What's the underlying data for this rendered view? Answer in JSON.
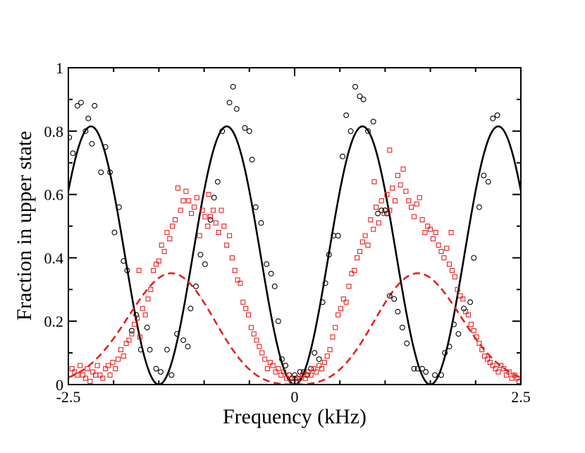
{
  "chart_data": {
    "type": "scatter",
    "title": "",
    "xlabel": "Frequency (kHz)",
    "ylabel": "Fraction in upper state",
    "xlim": [
      -2.5,
      2.5
    ],
    "ylim": [
      0,
      1
    ],
    "grid": false,
    "x_ticks": [
      {
        "value": -2.5,
        "label": "-2.5"
      },
      {
        "value": 0,
        "label": "0"
      },
      {
        "value": 2.5,
        "label": "2.5"
      }
    ],
    "y_ticks": [
      {
        "value": 0,
        "label": "0"
      },
      {
        "value": 0.2,
        "label": "0.2"
      },
      {
        "value": 0.4,
        "label": "0.4"
      },
      {
        "value": 0.6,
        "label": "0.6"
      },
      {
        "value": 0.8,
        "label": "0.8"
      },
      {
        "value": 1,
        "label": "1"
      }
    ],
    "series": [
      {
        "name": "black-circles-data",
        "kind": "scatter",
        "marker": "circle",
        "color": "#000000",
        "points": [
          [
            -2.49,
            0.78
          ],
          [
            -2.45,
            0.73
          ],
          [
            -2.4,
            0.88
          ],
          [
            -2.36,
            0.89
          ],
          [
            -2.31,
            0.8
          ],
          [
            -2.28,
            0.84
          ],
          [
            -2.24,
            0.76
          ],
          [
            -2.21,
            0.88
          ],
          [
            -2.14,
            0.67
          ],
          [
            -2.09,
            0.75
          ],
          [
            -2.04,
            0.67
          ],
          [
            -1.99,
            0.48
          ],
          [
            -1.94,
            0.56
          ],
          [
            -1.89,
            0.39
          ],
          [
            -1.85,
            0.36
          ],
          [
            -1.8,
            0.17
          ],
          [
            -1.75,
            0.22
          ],
          [
            -1.7,
            0.11
          ],
          [
            -1.63,
            0.18
          ],
          [
            -1.6,
            0.11
          ],
          [
            -1.53,
            0.05
          ],
          [
            -1.48,
            0.04
          ],
          [
            -1.41,
            0.11
          ],
          [
            -1.36,
            0.03
          ],
          [
            -1.3,
            0.16
          ],
          [
            -1.23,
            0.14
          ],
          [
            -1.18,
            0.12
          ],
          [
            -1.15,
            0.24
          ],
          [
            -1.09,
            0.31
          ],
          [
            -1.04,
            0.41
          ],
          [
            -0.99,
            0.38
          ],
          [
            -0.93,
            0.52
          ],
          [
            -0.89,
            0.59
          ],
          [
            -0.85,
            0.64
          ],
          [
            -0.8,
            0.8
          ],
          [
            -0.72,
            0.89
          ],
          [
            -0.68,
            0.94
          ],
          [
            -0.64,
            0.87
          ],
          [
            -0.55,
            0.81
          ],
          [
            -0.5,
            0.8
          ],
          [
            -0.47,
            0.71
          ],
          [
            -0.43,
            0.56
          ],
          [
            -0.37,
            0.51
          ],
          [
            -0.31,
            0.38
          ],
          [
            -0.26,
            0.35
          ],
          [
            -0.22,
            0.31
          ],
          [
            -0.18,
            0.2
          ],
          [
            -0.14,
            0.08
          ],
          [
            -0.1,
            0.06
          ],
          [
            -0.06,
            0.03
          ],
          [
            -0.03,
            0.02
          ],
          [
            0.0,
            0.03
          ],
          [
            0.03,
            0.02
          ],
          [
            0.06,
            0.04
          ],
          [
            0.1,
            0.04
          ],
          [
            0.14,
            0.03
          ],
          [
            0.18,
            0.05
          ],
          [
            0.22,
            0.1
          ],
          [
            0.27,
            0.08
          ],
          [
            0.31,
            0.26
          ],
          [
            0.34,
            0.32
          ],
          [
            0.38,
            0.41
          ],
          [
            0.43,
            0.47
          ],
          [
            0.48,
            0.47
          ],
          [
            0.53,
            0.72
          ],
          [
            0.57,
            0.85
          ],
          [
            0.62,
            0.8
          ],
          [
            0.67,
            0.94
          ],
          [
            0.72,
            0.91
          ],
          [
            0.76,
            0.9
          ],
          [
            0.81,
            0.8
          ],
          [
            0.87,
            0.83
          ],
          [
            0.92,
            0.54
          ],
          [
            0.96,
            0.55
          ],
          [
            1.0,
            0.55
          ],
          [
            1.02,
            0.54
          ],
          [
            1.05,
            0.28
          ],
          [
            1.1,
            0.27
          ],
          [
            1.14,
            0.23
          ],
          [
            1.19,
            0.18
          ],
          [
            1.24,
            0.13
          ],
          [
            1.32,
            0.05
          ],
          [
            1.36,
            0.05
          ],
          [
            1.41,
            0.05
          ],
          [
            1.45,
            0.04
          ],
          [
            1.55,
            0.03
          ],
          [
            1.62,
            0.03
          ],
          [
            1.66,
            0.1
          ],
          [
            1.71,
            0.12
          ],
          [
            1.76,
            0.19
          ],
          [
            1.81,
            0.16
          ],
          [
            1.87,
            0.24
          ],
          [
            1.94,
            0.26
          ],
          [
            1.98,
            0.4
          ],
          [
            2.04,
            0.56
          ],
          [
            2.09,
            0.66
          ],
          [
            2.14,
            0.64
          ],
          [
            2.19,
            0.84
          ],
          [
            2.24,
            0.85
          ]
        ]
      },
      {
        "name": "red-squares-data",
        "kind": "scatter",
        "marker": "square",
        "color": "#e8201e",
        "points": [
          [
            -2.46,
            0.05
          ],
          [
            -2.43,
            0.04
          ],
          [
            -2.4,
            0.03
          ],
          [
            -2.37,
            0.06
          ],
          [
            -2.34,
            0.03
          ],
          [
            -2.31,
            0.02
          ],
          [
            -2.29,
            0.05
          ],
          [
            -2.26,
            0.01
          ],
          [
            -2.23,
            0.04
          ],
          [
            -2.2,
            0.03
          ],
          [
            -2.18,
            0.06
          ],
          [
            -2.15,
            0.03
          ],
          [
            -2.12,
            0.02
          ],
          [
            -2.09,
            0.05
          ],
          [
            -2.06,
            0.06
          ],
          [
            -2.04,
            0.03
          ],
          [
            -2.01,
            0.07
          ],
          [
            -1.98,
            0.05
          ],
          [
            -1.95,
            0.08
          ],
          [
            -1.92,
            0.11
          ],
          [
            -1.89,
            0.09
          ],
          [
            -1.86,
            0.13
          ],
          [
            -1.83,
            0.14
          ],
          [
            -1.8,
            0.16
          ],
          [
            -1.77,
            0.19
          ],
          [
            -1.74,
            0.21
          ],
          [
            -1.71,
            0.15
          ],
          [
            -1.68,
            0.24
          ],
          [
            -1.65,
            0.22
          ],
          [
            -1.62,
            0.27
          ],
          [
            -1.59,
            0.3
          ],
          [
            -1.56,
            0.36
          ],
          [
            -1.53,
            0.38
          ],
          [
            -1.5,
            0.39
          ],
          [
            -1.47,
            0.44
          ],
          [
            -1.44,
            0.42
          ],
          [
            -1.41,
            0.48
          ],
          [
            -1.38,
            0.46
          ],
          [
            -1.35,
            0.5
          ],
          [
            -1.32,
            0.52
          ],
          [
            -1.29,
            0.62
          ],
          [
            -1.26,
            0.55
          ],
          [
            -1.23,
            0.58
          ],
          [
            -1.2,
            0.61
          ],
          [
            -1.17,
            0.58
          ],
          [
            -1.14,
            0.54
          ],
          [
            -1.11,
            0.56
          ],
          [
            -1.08,
            0.59
          ],
          [
            -1.05,
            0.47
          ],
          [
            -1.02,
            0.55
          ],
          [
            -0.99,
            0.53
          ],
          [
            -0.96,
            0.5
          ],
          [
            -0.93,
            0.53
          ],
          [
            -0.9,
            0.55
          ],
          [
            -0.87,
            0.51
          ],
          [
            -0.84,
            0.48
          ],
          [
            -0.81,
            0.55
          ],
          [
            -0.78,
            0.5
          ],
          [
            -0.75,
            0.44
          ],
          [
            -0.72,
            0.47
          ],
          [
            -0.69,
            0.4
          ],
          [
            -0.66,
            0.36
          ],
          [
            -0.63,
            0.33
          ],
          [
            -0.6,
            0.32
          ],
          [
            -0.57,
            0.26
          ],
          [
            -0.54,
            0.24
          ],
          [
            -0.51,
            0.22
          ],
          [
            -0.48,
            0.18
          ],
          [
            -0.45,
            0.16
          ],
          [
            -0.42,
            0.14
          ],
          [
            -0.39,
            0.12
          ],
          [
            -0.36,
            0.1
          ],
          [
            -0.33,
            0.08
          ],
          [
            -0.3,
            0.05
          ],
          [
            -0.27,
            0.07
          ],
          [
            -0.24,
            0.06
          ],
          [
            -0.21,
            0.04
          ],
          [
            -0.18,
            0.05
          ],
          [
            -0.15,
            0.03
          ],
          [
            -0.12,
            0.04
          ],
          [
            -0.09,
            0.02
          ],
          [
            -0.06,
            0.03
          ],
          [
            -0.03,
            0.01
          ],
          [
            0.0,
            0.02
          ],
          [
            0.03,
            0.01
          ],
          [
            0.06,
            0.02
          ],
          [
            0.09,
            0.03
          ],
          [
            0.12,
            0.02
          ],
          [
            0.15,
            0.04
          ],
          [
            0.18,
            0.03
          ],
          [
            0.21,
            0.05
          ],
          [
            0.24,
            0.04
          ],
          [
            0.27,
            0.06
          ],
          [
            0.3,
            0.05
          ],
          [
            0.33,
            0.07
          ],
          [
            0.36,
            0.09
          ],
          [
            0.39,
            0.11
          ],
          [
            0.42,
            0.15
          ],
          [
            0.45,
            0.18
          ],
          [
            0.48,
            0.22
          ],
          [
            0.51,
            0.24
          ],
          [
            0.54,
            0.27
          ],
          [
            0.57,
            0.26
          ],
          [
            0.6,
            0.31
          ],
          [
            0.63,
            0.35
          ],
          [
            0.66,
            0.36
          ],
          [
            0.69,
            0.4
          ],
          [
            0.72,
            0.42
          ],
          [
            0.75,
            0.45
          ],
          [
            0.78,
            0.47
          ],
          [
            0.81,
            0.44
          ],
          [
            0.84,
            0.52
          ],
          [
            0.87,
            0.49
          ],
          [
            0.9,
            0.56
          ],
          [
            0.93,
            0.51
          ],
          [
            0.96,
            0.58
          ],
          [
            0.99,
            0.54
          ],
          [
            1.02,
            0.6
          ],
          [
            1.05,
            0.55
          ],
          [
            1.08,
            0.62
          ],
          [
            1.11,
            0.58
          ],
          [
            1.14,
            0.66
          ],
          [
            1.17,
            0.63
          ],
          [
            1.2,
            0.68
          ],
          [
            1.23,
            0.61
          ],
          [
            1.26,
            0.58
          ],
          [
            1.29,
            0.56
          ],
          [
            1.32,
            0.53
          ],
          [
            1.35,
            0.57
          ],
          [
            1.38,
            0.59
          ],
          [
            1.41,
            0.52
          ],
          [
            1.44,
            0.48
          ],
          [
            1.47,
            0.5
          ],
          [
            1.5,
            0.49
          ],
          [
            1.53,
            0.46
          ],
          [
            1.56,
            0.48
          ],
          [
            1.59,
            0.44
          ],
          [
            1.62,
            0.42
          ],
          [
            1.65,
            0.4
          ],
          [
            1.68,
            0.43
          ],
          [
            1.71,
            0.38
          ],
          [
            1.74,
            0.36
          ],
          [
            1.77,
            0.34
          ],
          [
            1.8,
            0.3
          ],
          [
            1.83,
            0.28
          ],
          [
            1.86,
            0.27
          ],
          [
            1.89,
            0.23
          ],
          [
            1.92,
            0.22
          ],
          [
            1.95,
            0.19
          ],
          [
            1.98,
            0.17
          ],
          [
            2.01,
            0.15
          ],
          [
            2.04,
            0.13
          ],
          [
            2.07,
            0.11
          ],
          [
            2.1,
            0.09
          ],
          [
            2.13,
            0.08
          ],
          [
            2.16,
            0.07
          ],
          [
            2.19,
            0.06
          ],
          [
            2.22,
            0.05
          ],
          [
            2.25,
            0.04
          ],
          [
            2.28,
            0.06
          ],
          [
            2.31,
            0.05
          ],
          [
            2.34,
            0.03
          ],
          [
            2.37,
            0.04
          ],
          [
            2.4,
            0.02
          ],
          [
            2.43,
            0.03
          ],
          [
            2.46,
            0.02
          ],
          [
            2.48,
            0.01
          ],
          [
            1.05,
            0.74
          ],
          [
            0.88,
            0.64
          ],
          [
            1.73,
            0.48
          ],
          [
            -1.72,
            0.36
          ],
          [
            -0.95,
            0.6
          ]
        ]
      },
      {
        "name": "black-solid-fit",
        "kind": "line",
        "style": "solid",
        "color": "#000000",
        "function": "a*sin^2(pi*x/T)",
        "params": {
          "a": 0.815,
          "T": 1.5
        }
      },
      {
        "name": "red-dashed-fit",
        "kind": "line",
        "style": "dashed",
        "color": "#e8201e",
        "function": "a*sin^2(pi*x/T)*exp(-(|x|-m)^2/(2*s^2))",
        "params": {
          "a": 0.56,
          "T": 4.2,
          "m": 1.05,
          "s": 0.58
        }
      }
    ]
  }
}
